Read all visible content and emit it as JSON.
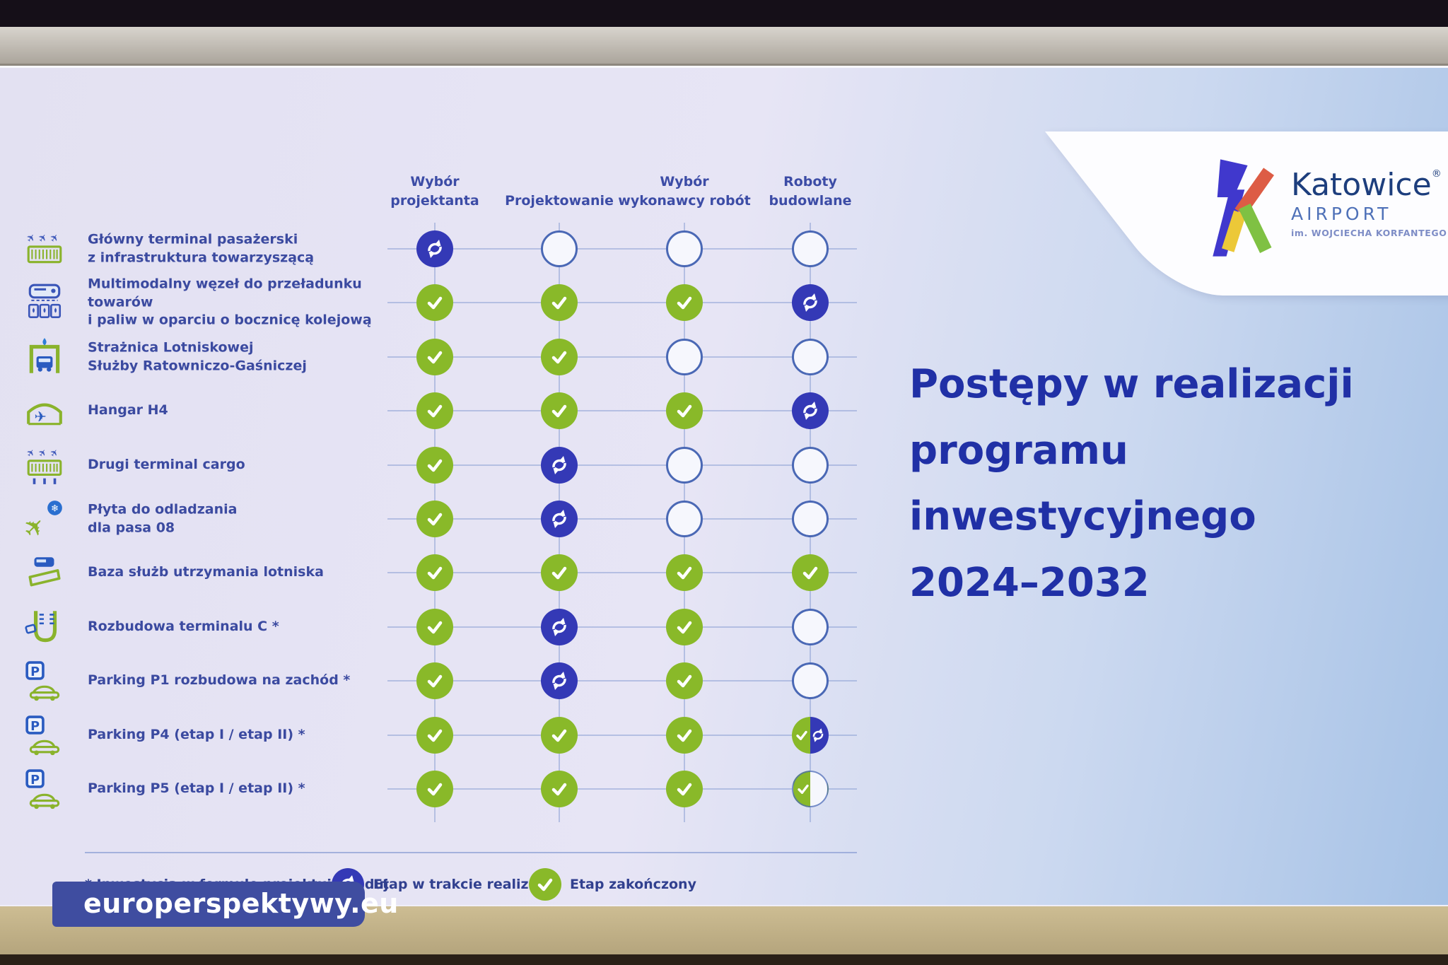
{
  "logo": {
    "brand": "Katowice",
    "registered": "®",
    "sub": "AIRPORT",
    "tagline": "im. WOJCIECHA KORFANTEGO"
  },
  "title": {
    "line1": "Postępy w realizacji",
    "line2": "programu inwestycyjnego",
    "line3": "2024–2032"
  },
  "table": {
    "columns": [
      {
        "line1": "Wybór",
        "line2": "projektanta"
      },
      {
        "line1": "",
        "line2": "Projektowanie"
      },
      {
        "line1": "Wybór",
        "line2": "wykonawcy robót"
      },
      {
        "line1": "Roboty",
        "line2": "budowlane"
      }
    ],
    "rows": [
      {
        "icon": "passenger-terminal-icon",
        "lines": [
          "Główny terminal pasażerski",
          "z infrastruktura towarzyszącą"
        ],
        "statuses": [
          "in_progress",
          "pending",
          "pending",
          "pending"
        ]
      },
      {
        "icon": "multimodal-hub-icon",
        "lines": [
          "Multimodalny węzeł do przeładunku towarów",
          "i paliw w oparciu o bocznicę kolejową"
        ],
        "statuses": [
          "done",
          "done",
          "done",
          "in_progress"
        ]
      },
      {
        "icon": "fire-station-icon",
        "lines": [
          "Strażnica Lotniskowej",
          "Służby Ratowniczo-Gaśniczej"
        ],
        "statuses": [
          "done",
          "done",
          "pending",
          "pending"
        ]
      },
      {
        "icon": "hangar-icon",
        "lines": [
          "Hangar H4"
        ],
        "statuses": [
          "done",
          "done",
          "done",
          "in_progress"
        ]
      },
      {
        "icon": "cargo-terminal-icon",
        "lines": [
          "Drugi terminal cargo"
        ],
        "statuses": [
          "done",
          "in_progress",
          "pending",
          "pending"
        ]
      },
      {
        "icon": "deicing-icon",
        "lines": [
          "Płyta do odladzania",
          "dla pasa 08"
        ],
        "statuses": [
          "done",
          "in_progress",
          "pending",
          "pending"
        ]
      },
      {
        "icon": "maintenance-base-icon",
        "lines": [
          "Baza służb utrzymania lotniska"
        ],
        "statuses": [
          "done",
          "done",
          "done",
          "done"
        ]
      },
      {
        "icon": "terminal-c-icon",
        "lines": [
          "Rozbudowa terminalu C *"
        ],
        "statuses": [
          "done",
          "in_progress",
          "done",
          "pending"
        ]
      },
      {
        "icon": "parking-icon",
        "lines": [
          "Parking P1 rozbudowa na zachód *"
        ],
        "statuses": [
          "done",
          "in_progress",
          "done",
          "pending"
        ]
      },
      {
        "icon": "parking-icon",
        "lines": [
          "Parking P4 (etap I / etap II) *"
        ],
        "statuses": [
          "done",
          "done",
          "done",
          "done_in_progress"
        ]
      },
      {
        "icon": "parking-icon",
        "lines": [
          "Parking P5 (etap I / etap II) *"
        ],
        "statuses": [
          "done",
          "done",
          "done",
          "done_pending"
        ]
      }
    ]
  },
  "legend": {
    "note": "* Inwestycja w formule projektuj i buduj",
    "items": [
      {
        "status": "in_progress",
        "icon": "refresh-icon",
        "label": "Etap w trakcie realizacji"
      },
      {
        "status": "done",
        "icon": "check-icon",
        "label": "Etap zakończony"
      }
    ]
  },
  "watermark": {
    "text": "europerspektywy.eu"
  },
  "colors": {
    "stage_done": "#89b929",
    "stage_in_progress": "#3439b6",
    "stage_pending_outline": "#4a68b5",
    "title_blue": "#2030a6",
    "watermark_bg": "#3f4da0"
  }
}
